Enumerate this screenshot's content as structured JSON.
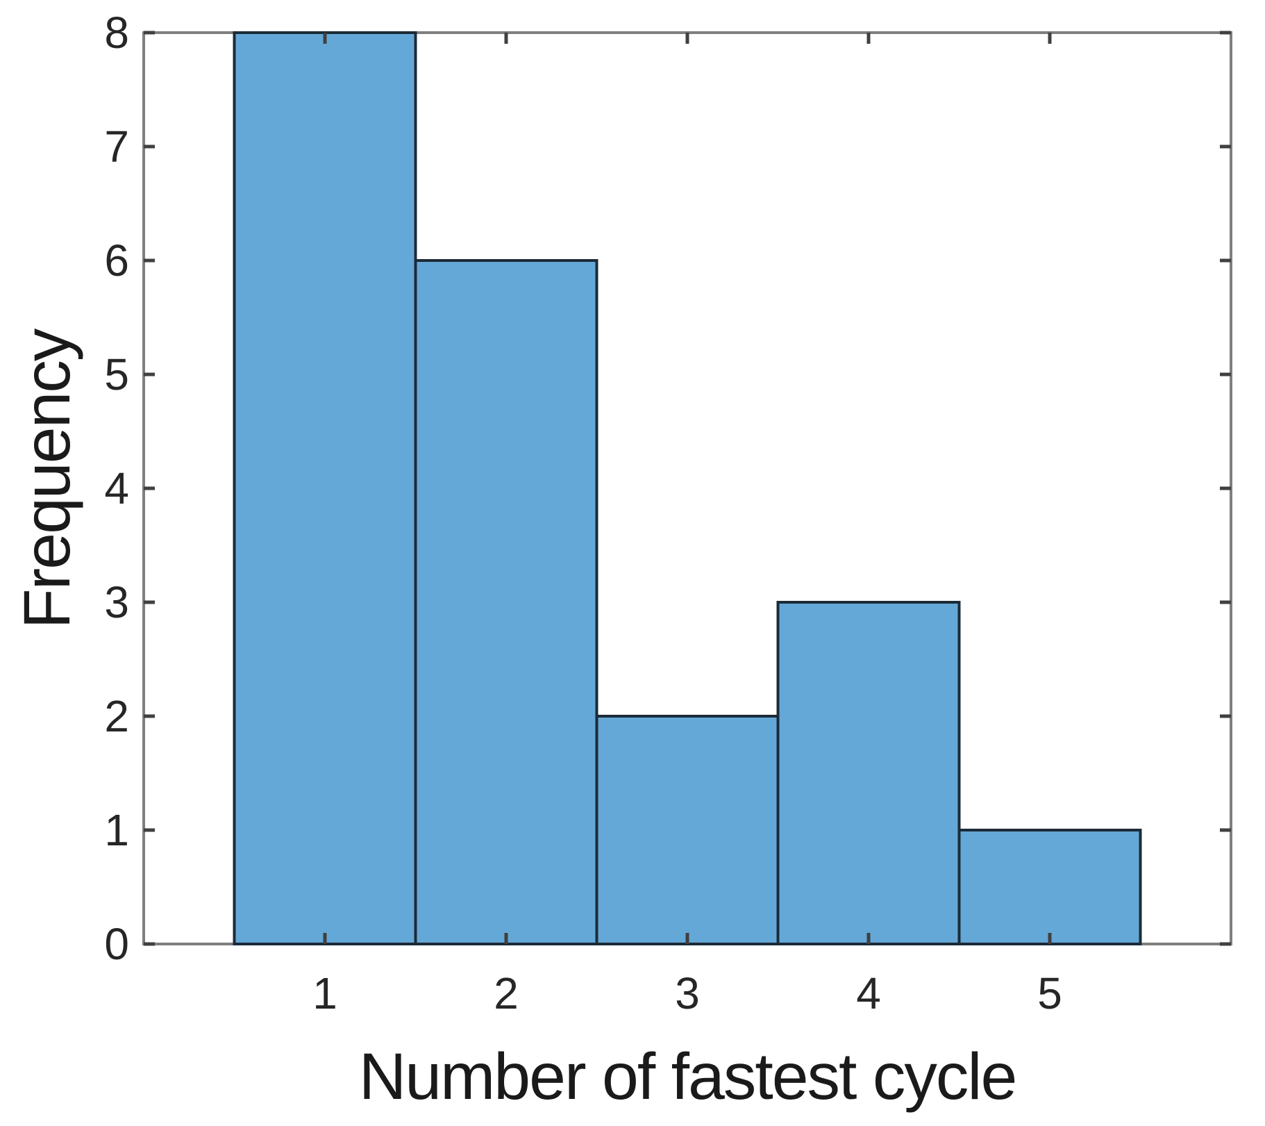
{
  "figure": {
    "background": "#FFFFFF"
  },
  "chart_data": {
    "type": "bar",
    "subtype": "histogram",
    "title": "",
    "xlabel": "Number of fastest cycle",
    "ylabel": "Frequency",
    "categories": [
      1,
      2,
      3,
      4,
      5
    ],
    "values": [
      8,
      6,
      2,
      3,
      1
    ],
    "bin_width": 1,
    "xlim": [
      0,
      6
    ],
    "ylim": [
      0,
      8
    ],
    "x_ticks": [
      1,
      2,
      3,
      4,
      5
    ],
    "y_ticks": [
      0,
      1,
      2,
      3,
      4,
      5,
      6,
      7,
      8
    ],
    "grid": false,
    "legend": false,
    "box": true,
    "tick_direction": "in",
    "colors": {
      "bar_fill": "#64A8D7",
      "bar_edge": "#1C2B38",
      "axis_box": "#7F7F7F",
      "tick": "#404040",
      "tick_label": "#262626",
      "axis_label": "#1A1A1A",
      "background": "#FFFFFF"
    }
  }
}
